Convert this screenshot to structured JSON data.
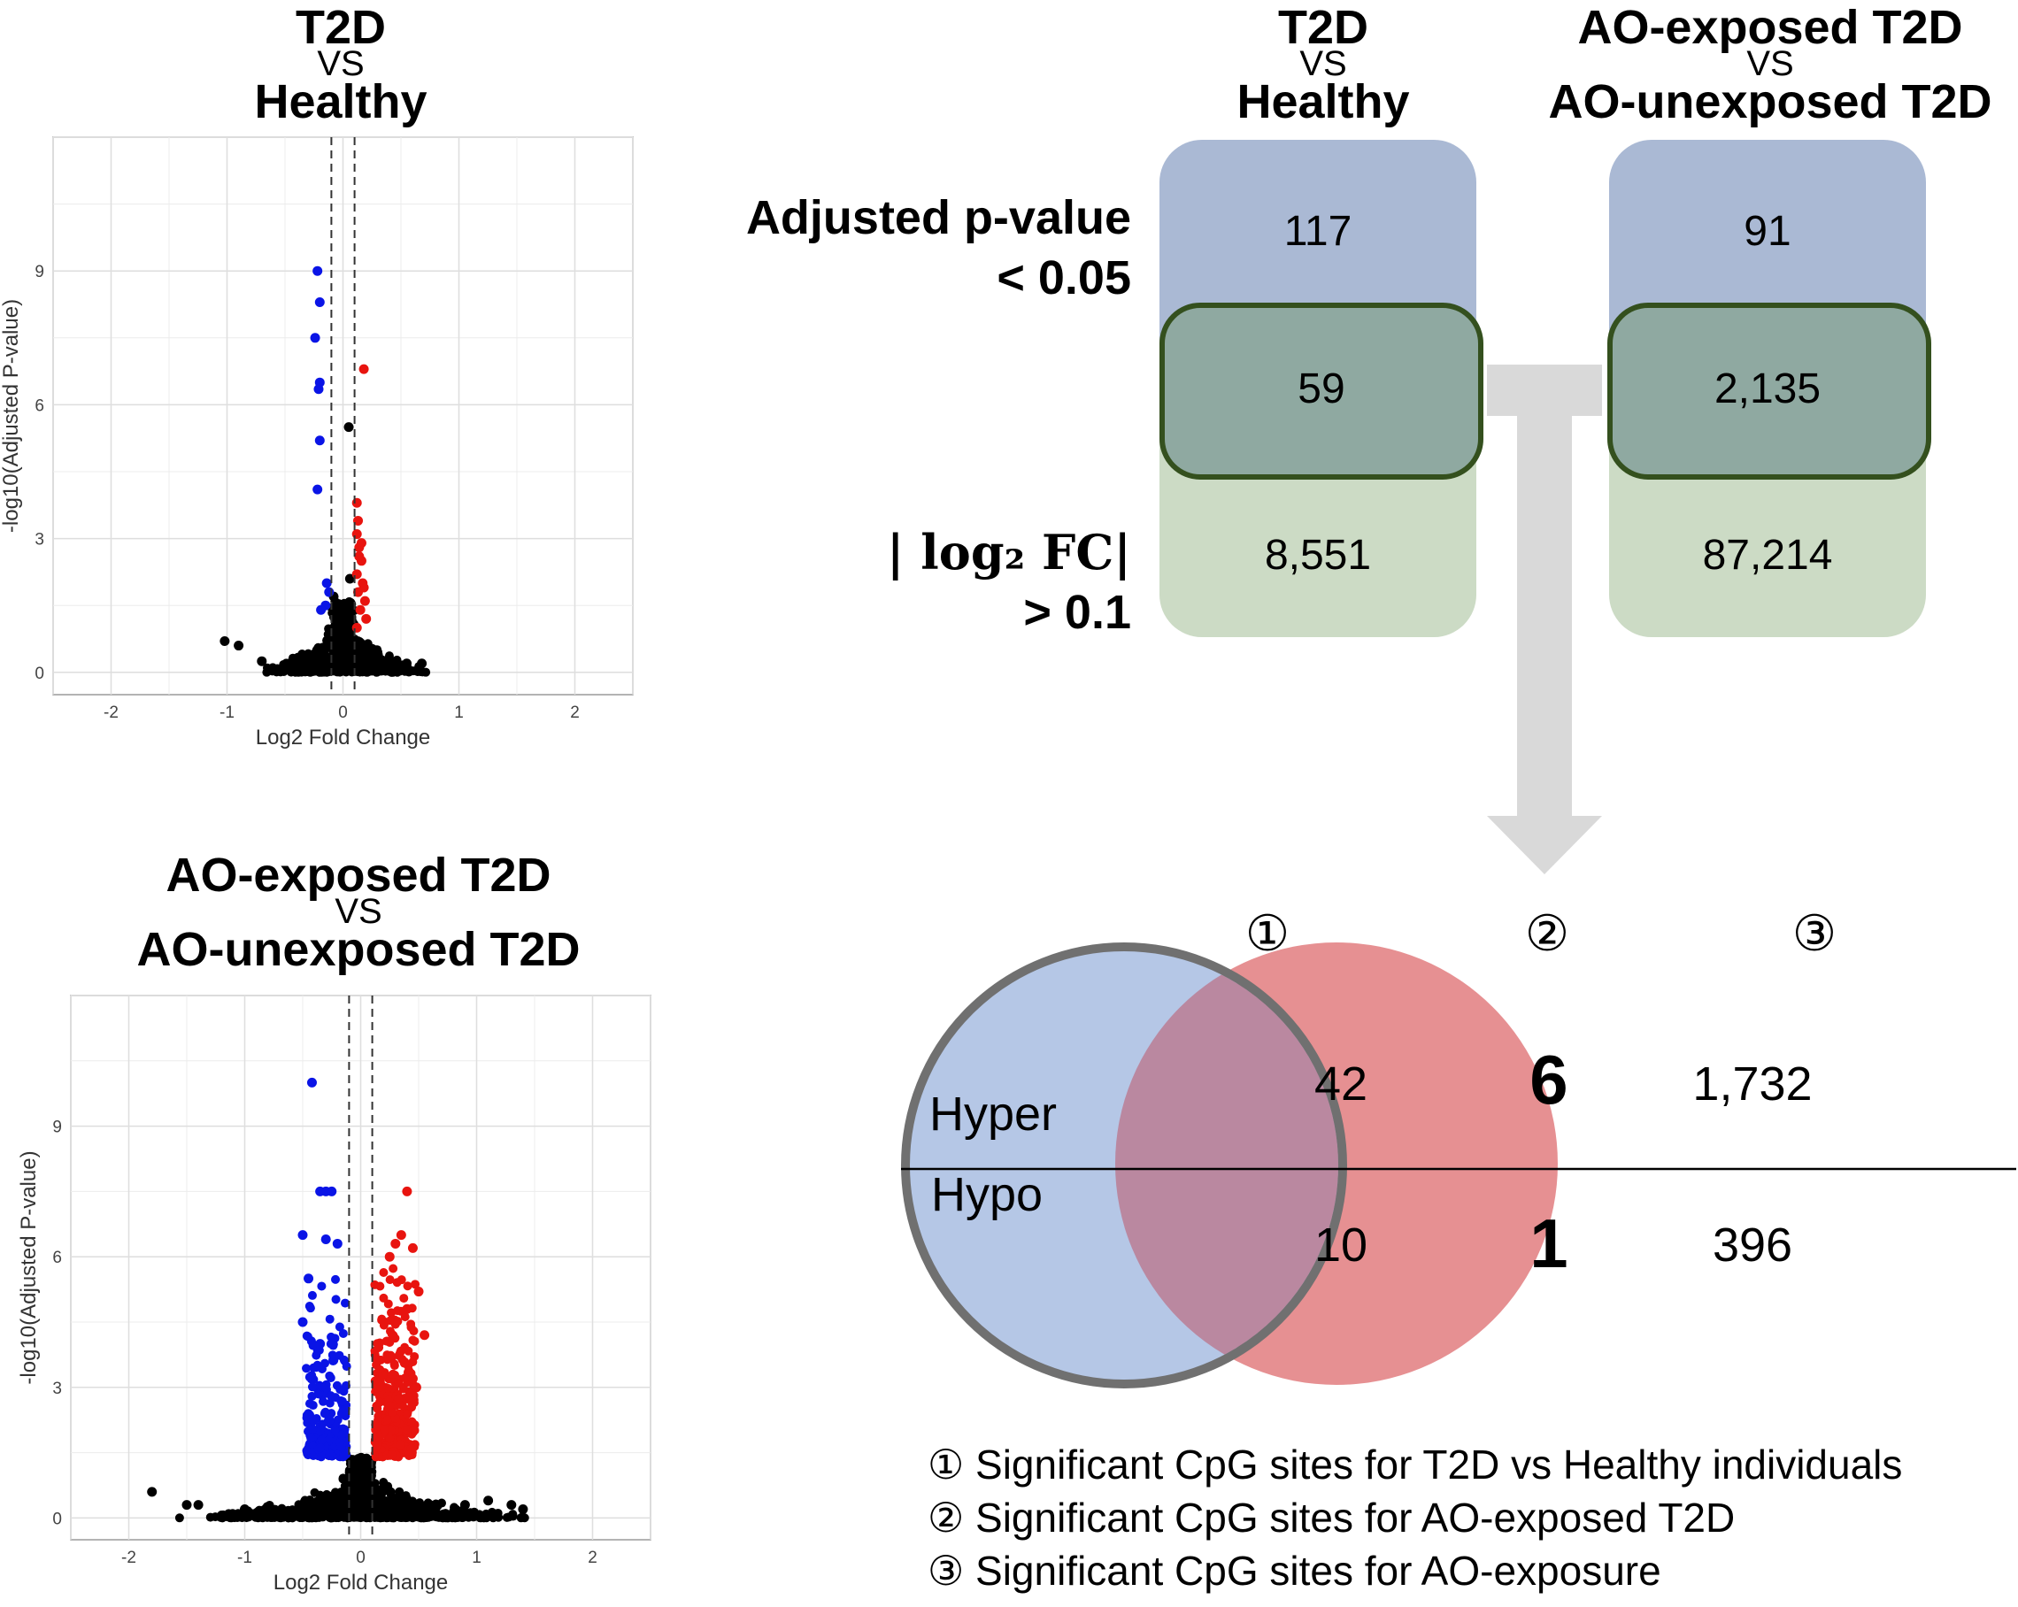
{
  "plots": [
    {
      "title_top": "T2D",
      "title_vs": "VS",
      "title_bottom": "Healthy",
      "xlabel": "Log2 Fold Change",
      "ylabel": "-log10(Adjusted P-value)",
      "xlim": [
        -2.5,
        2.5
      ],
      "ylim": [
        -0.5,
        12
      ],
      "xticks": [
        -2,
        -1,
        0,
        1,
        2
      ],
      "yticks": [
        0,
        3,
        6,
        9
      ],
      "thresholds": [
        -0.1,
        0.1
      ],
      "colors": {
        "down": "#0a14e6",
        "up": "#e8140f",
        "ns": "#000000"
      },
      "points_down": [
        [
          -0.22,
          9.0
        ],
        [
          -0.2,
          8.3
        ],
        [
          -0.24,
          7.5
        ],
        [
          -0.2,
          6.5
        ],
        [
          -0.21,
          6.35
        ],
        [
          -0.2,
          5.2
        ],
        [
          -0.22,
          4.1
        ],
        [
          -0.14,
          2.0
        ],
        [
          -0.15,
          1.5
        ],
        [
          -0.19,
          1.4
        ],
        [
          -0.12,
          1.8
        ]
      ],
      "points_up": [
        [
          0.18,
          6.8
        ],
        [
          0.12,
          3.8
        ],
        [
          0.13,
          3.4
        ],
        [
          0.12,
          3.1
        ],
        [
          0.14,
          2.8
        ],
        [
          0.16,
          2.5
        ],
        [
          0.12,
          2.2
        ],
        [
          0.17,
          2.0
        ],
        [
          0.13,
          1.8
        ],
        [
          0.19,
          1.6
        ],
        [
          0.15,
          1.4
        ],
        [
          0.2,
          1.2
        ],
        [
          0.12,
          1.0
        ],
        [
          0.16,
          2.9
        ],
        [
          0.14,
          2.6
        ],
        [
          0.18,
          1.9
        ]
      ],
      "points_ns": [
        [
          0.05,
          5.5
        ],
        [
          -1.02,
          0.7
        ],
        [
          -0.9,
          0.6
        ],
        [
          0.68,
          0.2
        ],
        [
          -0.08,
          1.7
        ],
        [
          0.06,
          2.1
        ],
        [
          -0.05,
          1.3
        ],
        [
          0.04,
          1.1
        ],
        [
          -0.7,
          0.25
        ],
        [
          0.55,
          0.2
        ]
      ]
    },
    {
      "title_top": "AO-exposed T2D",
      "title_vs": "VS",
      "title_bottom": "AO-unexposed T2D",
      "xlabel": "Log2 Fold Change",
      "ylabel": "-log10(Adjusted P-value)",
      "xlim": [
        -2.5,
        2.5
      ],
      "ylim": [
        -0.5,
        12
      ],
      "xticks": [
        -2,
        -1,
        0,
        1,
        2
      ],
      "yticks": [
        0,
        3,
        6,
        9
      ],
      "thresholds": [
        -0.1,
        0.1
      ],
      "colors": {
        "down": "#0a14e6",
        "up": "#e8140f",
        "ns": "#000000"
      },
      "points_down": [
        [
          -0.42,
          10.0
        ],
        [
          -0.35,
          7.5
        ],
        [
          -0.3,
          7.5
        ],
        [
          -0.25,
          7.5
        ],
        [
          -0.5,
          6.5
        ],
        [
          -0.3,
          6.4
        ],
        [
          -0.2,
          6.3
        ],
        [
          -0.45,
          5.5
        ],
        [
          -0.5,
          4.5
        ],
        [
          -0.35,
          4.0
        ]
      ],
      "points_up": [
        [
          0.4,
          7.5
        ],
        [
          0.35,
          6.5
        ],
        [
          0.3,
          6.3
        ],
        [
          0.25,
          6.0
        ],
        [
          0.45,
          6.2
        ],
        [
          0.5,
          5.2
        ],
        [
          0.4,
          4.8
        ],
        [
          0.55,
          4.2
        ],
        [
          0.45,
          3.2
        ],
        [
          0.48,
          3.0
        ]
      ],
      "points_ns": [
        [
          -1.8,
          0.6
        ],
        [
          -1.5,
          0.3
        ],
        [
          -1.4,
          0.3
        ],
        [
          1.3,
          0.3
        ],
        [
          1.4,
          0.2
        ],
        [
          1.1,
          0.4
        ],
        [
          -1.0,
          0.2
        ],
        [
          0.9,
          0.3
        ]
      ]
    }
  ],
  "table": {
    "col1_top": "T2D",
    "col1_vs": "VS",
    "col1_bottom": "Healthy",
    "col2_top": "AO-exposed T2D",
    "col2_vs": "VS",
    "col2_bottom": "AO-unexposed T2D",
    "row1_line1": "Adjusted p-value",
    "row1_line2": "< 0.05",
    "row2_line1": "| log₂ FC|",
    "row2_line2": "> 0.1",
    "col1_pval": "117",
    "col1_both": "59",
    "col1_fc": "8,551",
    "col2_pval": "91",
    "col2_both": "2,135",
    "col2_fc": "87,214",
    "colors": {
      "blue": "#aab9d4",
      "overlap": "#8fa9a1",
      "green": "#ccdbc5",
      "border": "#34501e",
      "arrow": "#d9d9d9"
    }
  },
  "venn": {
    "label1": "①",
    "label2": "②",
    "label3": "③",
    "hyper_label": "Hyper",
    "hypo_label": "Hypo",
    "hyper_only1": "42",
    "hyper_both": "6",
    "hyper_only3": "1,732",
    "hypo_only1": "10",
    "hypo_both": "1",
    "hypo_only3": "396",
    "colors": {
      "circle1": "#b4c5e5",
      "circle3": "#e0787a",
      "ring": "#777777"
    }
  },
  "legend": [
    "① Significant CpG sites for T2D vs Healthy individuals",
    "② Significant CpG sites for AO-exposed T2D",
    "③ Significant CpG sites for AO-exposure"
  ]
}
